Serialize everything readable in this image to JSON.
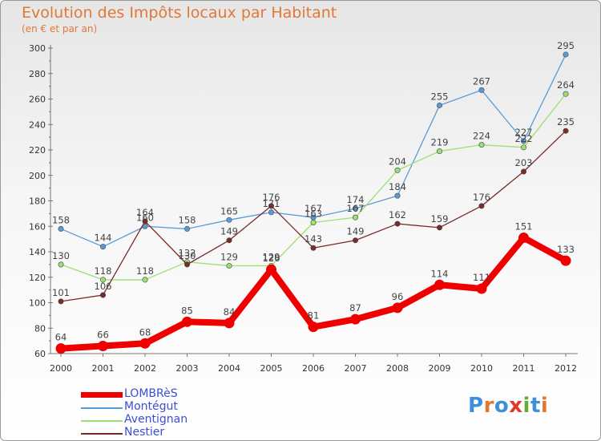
{
  "header": {
    "title": "Evolution des Impôts locaux par Habitant",
    "subtitle": "(en € et par an)"
  },
  "logo": {
    "letters": [
      "P",
      "r",
      "o",
      "x",
      "i",
      "t",
      "i"
    ],
    "colors": [
      "#3f8fd8",
      "#e07830",
      "#3f8fd8",
      "#e03a2a",
      "#5fb030",
      "#3f8fd8",
      "#e07830"
    ]
  },
  "chart_data": {
    "type": "line",
    "title": "Evolution des Impôts locaux par Habitant",
    "subtitle": "(en € et par an)",
    "xlabel": "",
    "ylabel": "",
    "x": [
      "2000",
      "2001",
      "2002",
      "2003",
      "2004",
      "2005",
      "2006",
      "2007",
      "2008",
      "2009",
      "2010",
      "2011",
      "2012"
    ],
    "ylim": [
      60,
      300
    ],
    "yticks": [
      60,
      80,
      100,
      120,
      140,
      160,
      180,
      200,
      220,
      240,
      260,
      280,
      300
    ],
    "grid": false,
    "legend_position": "bottom-left",
    "series": [
      {
        "name": "LOMBRèS",
        "values": [
          64,
          66,
          68,
          85,
          84,
          126,
          81,
          87,
          96,
          114,
          111,
          151,
          133
        ],
        "color": "#ee0000",
        "emphasis": true
      },
      {
        "name": "Montégut",
        "values": [
          158,
          144,
          160,
          158,
          165,
          171,
          167,
          174,
          184,
          255,
          267,
          227,
          295
        ],
        "color": "#5b9bd5"
      },
      {
        "name": "Aventignan",
        "values": [
          130,
          118,
          118,
          132,
          129,
          129,
          163,
          167,
          204,
          219,
          224,
          222,
          264
        ],
        "color": "#9be070"
      },
      {
        "name": "Nestier",
        "values": [
          101,
          106,
          164,
          130,
          149,
          176,
          143,
          149,
          162,
          159,
          176,
          203,
          235
        ],
        "color": "#7a2a2a"
      }
    ]
  }
}
